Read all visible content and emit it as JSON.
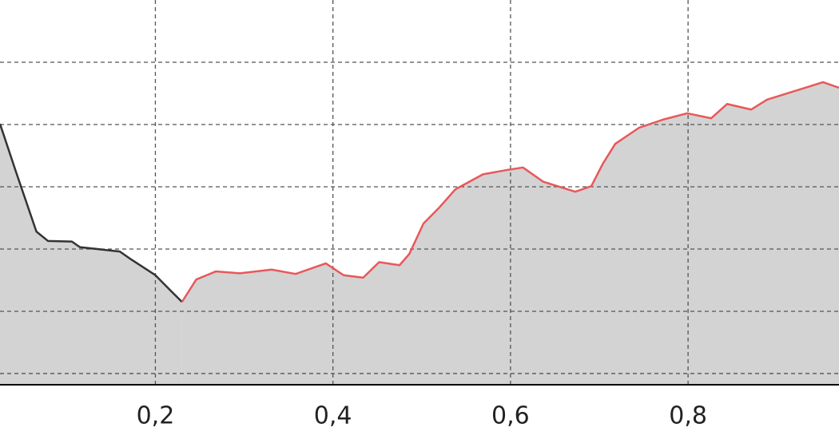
{
  "chart_data": {
    "type": "line",
    "area_fill": "#d3d3d3",
    "grid": true,
    "xlim": [
      0.025,
      0.97
    ],
    "ylim": [
      0.82,
      7.0
    ],
    "xticks": [
      {
        "value": 0.2,
        "label": "0,2"
      },
      {
        "value": 0.4,
        "label": "0,4"
      },
      {
        "value": 0.6,
        "label": "0,6"
      },
      {
        "value": 0.8,
        "label": "0,8"
      }
    ],
    "yticks": [
      1,
      2,
      3,
      4,
      5,
      6
    ],
    "series": [
      {
        "color": "#333333",
        "x": [
          0.025,
          0.043,
          0.066,
          0.079,
          0.106,
          0.115,
          0.16,
          0.173,
          0.2,
          0.218,
          0.23
        ],
        "values": [
          5.01,
          4.24,
          3.28,
          3.13,
          3.12,
          3.03,
          2.96,
          2.83,
          2.58,
          2.32,
          2.15
        ]
      },
      {
        "color": "#e8585a",
        "x": [
          0.23,
          0.246,
          0.268,
          0.295,
          0.331,
          0.358,
          0.392,
          0.412,
          0.434,
          0.452,
          0.475,
          0.486,
          0.502,
          0.52,
          0.538,
          0.569,
          0.596,
          0.614,
          0.637,
          0.673,
          0.691,
          0.704,
          0.718,
          0.745,
          0.772,
          0.799,
          0.826,
          0.844,
          0.871,
          0.889,
          0.916,
          0.952,
          0.97
        ],
        "values": [
          2.15,
          2.51,
          2.64,
          2.61,
          2.67,
          2.6,
          2.77,
          2.58,
          2.54,
          2.79,
          2.74,
          2.92,
          3.41,
          3.67,
          3.96,
          4.2,
          4.27,
          4.31,
          4.08,
          3.92,
          4.01,
          4.37,
          4.69,
          4.95,
          5.08,
          5.18,
          5.1,
          5.33,
          5.24,
          5.4,
          5.52,
          5.68,
          5.59
        ]
      }
    ]
  }
}
